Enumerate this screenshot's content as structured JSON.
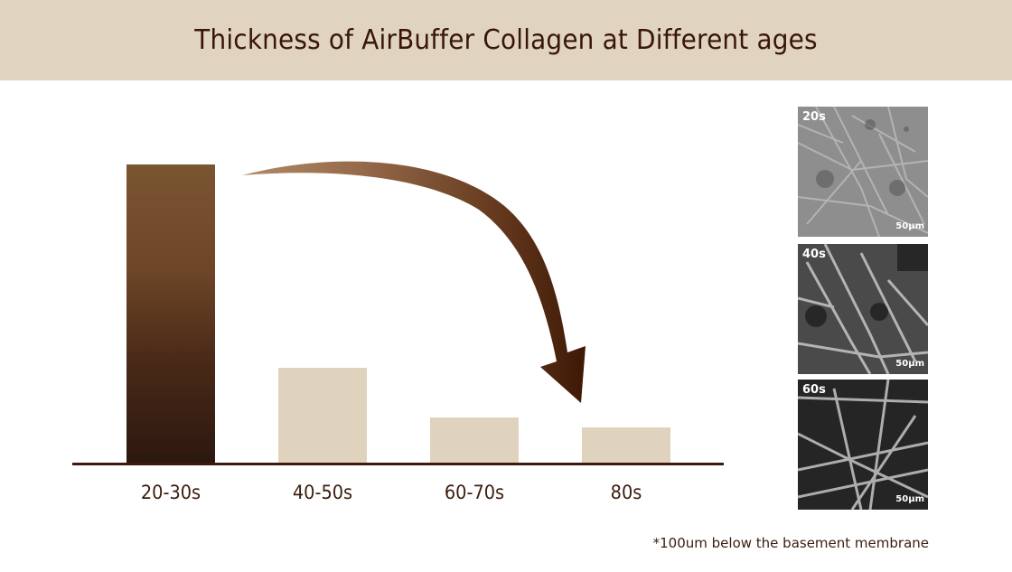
{
  "header": {
    "title": "Thickness of AirBuffer Collagen at Different ages"
  },
  "chart_data": {
    "type": "bar",
    "title": "Thickness of AirBuffer Collagen at Different ages",
    "categories": [
      "20-30s",
      "40-50s",
      "60-70s",
      "80s"
    ],
    "values": [
      100,
      32,
      15.5,
      12
    ],
    "xlabel": "",
    "ylabel": "",
    "ylim": [
      0,
      100
    ],
    "grid": false,
    "legend": null,
    "colors": [
      "gradient:#7a5532-#2c1810",
      "#dfd3bd",
      "#dfd3bd",
      "#dfd3bd"
    ],
    "annotations": [
      "curved arrow from 20-30s bar down to 80s bar indicating decline"
    ],
    "footnote": "*100um below the basement membrane"
  },
  "bars": [
    {
      "label": "20-30s",
      "value": 100
    },
    {
      "label": "40-50s",
      "value": 32
    },
    {
      "label": "60-70s",
      "value": 15.5
    },
    {
      "label": "80s",
      "value": 12
    }
  ],
  "images": [
    {
      "age": "20s",
      "scale": "50µm"
    },
    {
      "age": "40s",
      "scale": "50µm"
    },
    {
      "age": "60s",
      "scale": "50µm"
    }
  ],
  "footnote": "*100um below the basement membrane",
  "colors": {
    "header_bg": "#e0d4bf",
    "title": "#3a1608",
    "bar_light": "#dfd3bd",
    "bar_dark_top": "#7a5532",
    "bar_dark_bottom": "#2c1810",
    "axis": "#3d1a0c",
    "arrow_start": "#a27854",
    "arrow_end": "#3e1805"
  }
}
